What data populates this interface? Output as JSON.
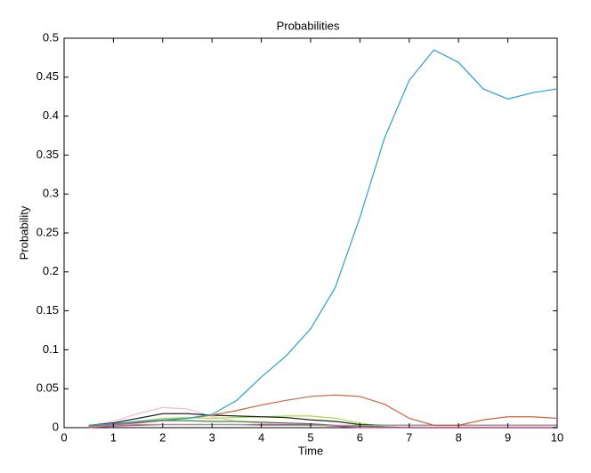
{
  "chart_data": {
    "type": "line",
    "title": "Probabilities",
    "x_label": "Time",
    "y_label": "Probability",
    "x": [
      0.5,
      1,
      1.5,
      2,
      2.5,
      3,
      3.5,
      4,
      4.5,
      5,
      5.5,
      6,
      6.5,
      7,
      7.5,
      8,
      8.5,
      9,
      9.5,
      10
    ],
    "series": [
      {
        "color": "#f2bccb",
        "values": [
          0.002,
          0.008,
          0.018,
          0.026,
          0.024,
          0.014,
          0.008,
          0.006,
          0.004,
          0.003,
          0.002,
          0.001,
          0.001,
          0.001,
          0.001,
          0.001,
          0.001,
          0.001,
          0.001,
          0.001
        ]
      },
      {
        "color": "#a6e03c",
        "values": [
          0.001,
          0.004,
          0.008,
          0.012,
          0.013,
          0.012,
          0.013,
          0.014,
          0.015,
          0.015,
          0.012,
          0.006,
          0.001,
          0,
          0,
          0,
          0,
          0,
          0,
          0
        ]
      },
      {
        "color": "#222222",
        "values": [
          0.003,
          0.006,
          0.012,
          0.018,
          0.018,
          0.016,
          0.015,
          0.014,
          0.013,
          0.01,
          0.008,
          0.004,
          0.003,
          0.003,
          0.003,
          0.003,
          0.003,
          0.003,
          0.003,
          0.003
        ]
      },
      {
        "color": "#3a8a3a",
        "values": [
          0.002,
          0.004,
          0.007,
          0.009,
          0.009,
          0.008,
          0.008,
          0.007,
          0.006,
          0.005,
          0.003,
          0.002,
          0.001,
          0,
          0,
          0,
          0,
          0,
          0,
          0
        ]
      },
      {
        "color": "#c040a0",
        "values": [
          0,
          0.002,
          0.003,
          0.004,
          0.004,
          0.004,
          0.004,
          0.004,
          0.004,
          0.004,
          0.002,
          0,
          0,
          0,
          0,
          0,
          0,
          0,
          0,
          0
        ]
      },
      {
        "color": "#999999",
        "values": [
          0.003,
          0.003,
          0.004,
          0.004,
          0.004,
          0.004,
          0.004,
          0.003,
          0.003,
          0.003,
          0.003,
          0.003,
          0.003,
          0.003,
          0.003,
          0.003,
          0.003,
          0.003,
          0.003,
          0.003
        ]
      },
      {
        "color": "#c8643c",
        "values": [
          0.002,
          0.004,
          0.006,
          0.009,
          0.012,
          0.016,
          0.022,
          0.029,
          0.035,
          0.04,
          0.042,
          0.04,
          0.03,
          0.012,
          0.003,
          0.003,
          0.01,
          0.014,
          0.014,
          0.012
        ]
      },
      {
        "color": "#2a9fd0",
        "values": [
          0.003,
          0.005,
          0.008,
          0.01,
          0.012,
          0.017,
          0.035,
          0.065,
          0.092,
          0.127,
          0.18,
          0.27,
          0.372,
          0.446,
          0.485,
          0.469,
          0.435,
          0.422,
          0.43,
          0.435
        ]
      }
    ],
    "xlim": [
      0,
      10
    ],
    "ylim": [
      0,
      0.5
    ],
    "xticks": [
      0,
      1,
      2,
      3,
      4,
      5,
      6,
      7,
      8,
      9,
      10
    ],
    "yticks": [
      0,
      0.05,
      0.1,
      0.15,
      0.2,
      0.25,
      0.3,
      0.35,
      0.4,
      0.45,
      0.5
    ],
    "grid": false
  }
}
